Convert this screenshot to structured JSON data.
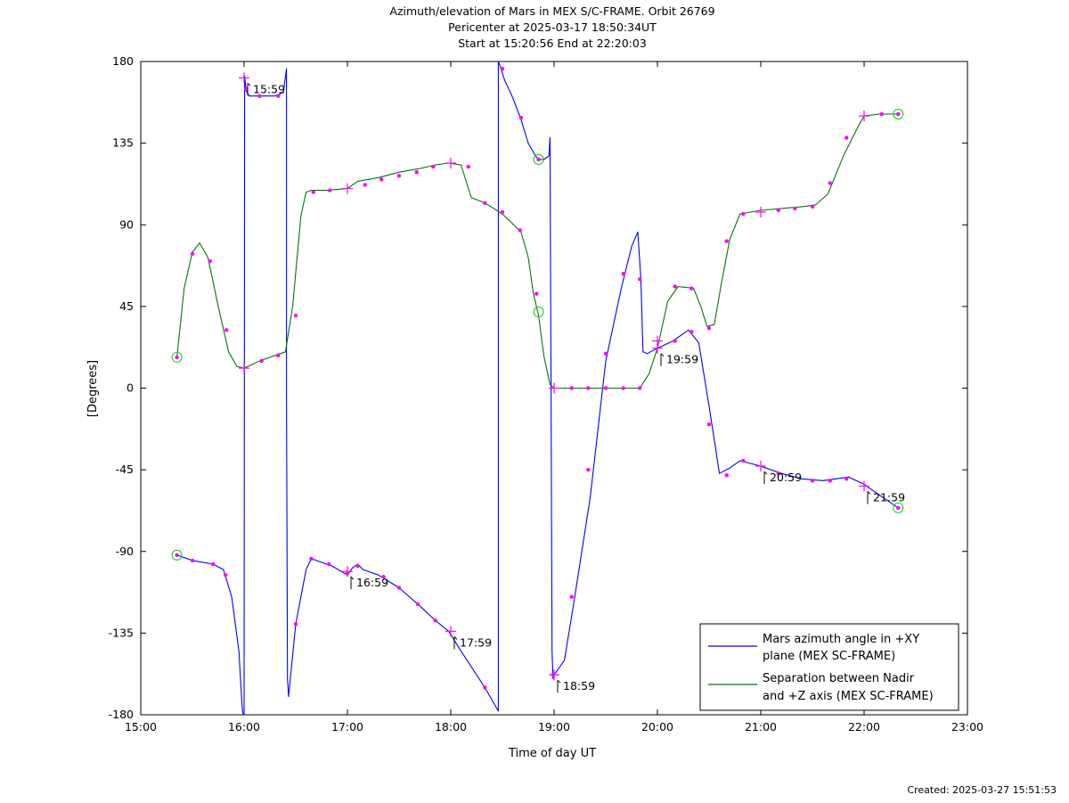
{
  "header": {
    "title": "Azimuth/elevation of Mars in MEX S/C-FRAME.  Orbit 26769",
    "pericenter": "Pericenter at 2025-03-17 18:50:34UT",
    "span": "Start at 15:20:56 End at 22:20:03"
  },
  "footer": {
    "created": "Created: 2025-03-27 15:51:53"
  },
  "colors": {
    "azimuth": "#0000ff",
    "separation": "#007700",
    "marker": "#ff00ff",
    "endpoint": "#22cc22"
  },
  "chart_data": {
    "type": "line",
    "xlabel": "Time of day UT",
    "ylabel": "[Degrees]",
    "xlim": [
      15.0,
      23.0
    ],
    "ylim": [
      -180,
      180
    ],
    "x_ticks": [
      15,
      16,
      17,
      18,
      19,
      20,
      21,
      22,
      23
    ],
    "x_tick_labels": [
      "15:00",
      "16:00",
      "17:00",
      "18:00",
      "19:00",
      "20:00",
      "21:00",
      "22:00",
      "23:00"
    ],
    "y_ticks": [
      180,
      135,
      90,
      45,
      0,
      -45,
      -90,
      -135,
      -180
    ],
    "y_tick_labels": [
      "180",
      "135",
      "90",
      "45",
      "0",
      "-45",
      "-90",
      "-135",
      "-180"
    ],
    "legend_position": "bottom-right",
    "series": [
      {
        "name": "Mars azimuth angle in +XY plane (MEX SC-FRAME)",
        "legend_lines": [
          "Mars azimuth angle in +XY",
          "plane (MEX SC-FRAME)"
        ],
        "color": "#0000ff",
        "x": [
          15.35,
          15.5,
          15.7,
          15.8,
          15.88,
          15.95,
          15.98,
          15.99,
          16.0,
          16.005,
          16.02,
          16.05,
          16.15,
          16.3,
          16.38,
          16.41,
          16.41,
          16.42,
          16.43,
          16.5,
          16.6,
          16.65,
          16.85,
          17.0,
          17.05,
          17.1,
          17.15,
          17.3,
          17.5,
          17.7,
          17.85,
          17.98,
          18.1,
          18.33,
          18.46,
          18.46,
          18.48,
          18.52,
          18.6,
          18.68,
          18.75,
          18.82,
          18.85,
          18.9,
          18.95,
          18.96,
          18.97,
          18.98,
          18.99,
          19.0,
          19.1,
          19.2,
          19.35,
          19.5,
          19.65,
          19.75,
          19.81,
          19.84,
          19.86,
          19.9,
          20.0,
          20.15,
          20.3,
          20.4,
          20.5,
          20.6,
          20.7,
          20.8,
          21.0,
          21.2,
          21.4,
          21.6,
          21.85,
          22.0,
          22.15,
          22.33
        ],
        "y": [
          -92,
          -95,
          -97,
          -100,
          -115,
          -145,
          -175,
          -180,
          -180,
          172,
          164,
          161,
          161,
          161,
          163,
          176,
          0,
          -160,
          -170,
          -130,
          -100,
          -94,
          -98,
          -103,
          -99,
          -97,
          -100,
          -103,
          -110,
          -120,
          -128,
          -134,
          -145,
          -165,
          -178,
          180,
          177,
          170,
          160,
          148,
          135,
          128,
          126,
          126,
          128,
          138,
          10,
          -145,
          -160,
          -158,
          -150,
          -115,
          -60,
          15,
          55,
          78,
          86,
          60,
          20,
          19,
          22,
          26,
          32,
          25,
          -10,
          -47,
          -44,
          -40,
          -43,
          -47,
          -50,
          -51,
          -49,
          -53,
          -59,
          -66
        ]
      },
      {
        "name": "Separation between Nadir and +Z axis (MEX SC-FRAME)",
        "legend_lines": [
          "Separation between Nadir",
          "and +Z axis (MEX SC-FRAME)"
        ],
        "color": "#007700",
        "x": [
          15.35,
          15.42,
          15.5,
          15.57,
          15.65,
          15.75,
          15.85,
          15.93,
          16.0,
          16.15,
          16.3,
          16.4,
          16.47,
          16.55,
          16.6,
          16.65,
          16.8,
          17.0,
          17.1,
          17.3,
          17.5,
          17.7,
          17.85,
          17.98,
          18.1,
          18.17,
          18.2,
          18.33,
          18.5,
          18.68,
          18.75,
          18.8,
          18.85,
          18.9,
          18.96,
          19.0,
          19.2,
          19.5,
          19.7,
          19.83,
          19.92,
          20.0,
          20.1,
          20.2,
          20.35,
          20.42,
          20.48,
          20.55,
          20.62,
          20.7,
          20.8,
          21.0,
          21.2,
          21.4,
          21.53,
          21.65,
          21.8,
          21.95,
          22.0,
          22.15,
          22.33
        ],
        "y": [
          17,
          55,
          75,
          80,
          72,
          45,
          20,
          12,
          11,
          15,
          18,
          20,
          45,
          95,
          108,
          109,
          109,
          110,
          114,
          116,
          119,
          121,
          123,
          124,
          123,
          110,
          105,
          102,
          96,
          86,
          72,
          52,
          40,
          18,
          2,
          0,
          0,
          0,
          0,
          0,
          8,
          22,
          48,
          56,
          55,
          45,
          34,
          35,
          58,
          82,
          96,
          98,
          99,
          100,
          101,
          107,
          128,
          145,
          150,
          151,
          151
        ]
      }
    ],
    "markers": {
      "azimuth_points": [
        [
          15.35,
          -92
        ],
        [
          15.5,
          -95
        ],
        [
          15.7,
          -97
        ],
        [
          15.82,
          -103
        ],
        [
          16.02,
          165
        ],
        [
          16.15,
          161
        ],
        [
          16.33,
          161
        ],
        [
          16.5,
          -130
        ],
        [
          16.65,
          -94
        ],
        [
          16.82,
          -97
        ],
        [
          17.0,
          -102
        ],
        [
          17.1,
          -98
        ],
        [
          17.35,
          -104
        ],
        [
          17.5,
          -110
        ],
        [
          17.68,
          -119
        ],
        [
          17.85,
          -128
        ],
        [
          18.33,
          -165
        ],
        [
          18.5,
          176
        ],
        [
          18.68,
          149
        ],
        [
          18.85,
          126
        ],
        [
          18.99,
          -158
        ],
        [
          19.17,
          -115
        ],
        [
          19.33,
          -45
        ],
        [
          19.5,
          19
        ],
        [
          19.67,
          63
        ],
        [
          19.83,
          60
        ],
        [
          20.17,
          26
        ],
        [
          20.33,
          31
        ],
        [
          20.5,
          -20
        ],
        [
          20.67,
          -48
        ],
        [
          20.83,
          -40
        ],
        [
          21.17,
          -47
        ],
        [
          21.5,
          -51
        ],
        [
          21.67,
          -51
        ],
        [
          21.83,
          -50
        ],
        [
          22.33,
          -66
        ]
      ],
      "separation_points": [
        [
          15.35,
          17
        ],
        [
          15.5,
          74
        ],
        [
          15.67,
          70
        ],
        [
          15.83,
          32
        ],
        [
          16.17,
          15
        ],
        [
          16.33,
          18
        ],
        [
          16.5,
          40
        ],
        [
          16.67,
          108
        ],
        [
          16.83,
          109
        ],
        [
          17.17,
          112
        ],
        [
          17.33,
          115
        ],
        [
          17.5,
          117
        ],
        [
          17.67,
          119
        ],
        [
          17.83,
          122
        ],
        [
          18.17,
          122
        ],
        [
          18.33,
          102
        ],
        [
          18.5,
          97
        ],
        [
          18.67,
          87
        ],
        [
          18.83,
          52
        ],
        [
          19.17,
          0
        ],
        [
          19.33,
          0
        ],
        [
          19.5,
          0
        ],
        [
          19.67,
          0
        ],
        [
          19.83,
          0
        ],
        [
          20.17,
          56
        ],
        [
          20.33,
          55
        ],
        [
          20.5,
          33
        ],
        [
          20.67,
          81
        ],
        [
          20.83,
          96
        ],
        [
          21.17,
          98
        ],
        [
          21.33,
          99
        ],
        [
          21.5,
          100
        ],
        [
          21.67,
          113
        ],
        [
          21.83,
          138
        ],
        [
          22.17,
          151
        ],
        [
          22.33,
          151
        ]
      ],
      "hour_crosses": [
        [
          16.0,
          171
        ],
        [
          16.0,
          11
        ],
        [
          17.0,
          -101
        ],
        [
          17.0,
          110
        ],
        [
          18.0,
          -134
        ],
        [
          18.0,
          124
        ],
        [
          19.0,
          -158
        ],
        [
          19.0,
          0
        ],
        [
          20.0,
          26
        ],
        [
          20.0,
          22
        ],
        [
          21.0,
          -43
        ],
        [
          21.0,
          97
        ],
        [
          22.0,
          -54
        ],
        [
          22.0,
          150
        ]
      ],
      "endpoint_circles": [
        [
          15.35,
          -92
        ],
        [
          15.35,
          17
        ],
        [
          18.85,
          126
        ],
        [
          18.85,
          42
        ],
        [
          22.33,
          151
        ],
        [
          22.33,
          -66
        ]
      ]
    },
    "annotations": [
      {
        "text": "15:59",
        "x": 16.0,
        "y": 171
      },
      {
        "text": "16:59",
        "x": 17.0,
        "y": -101
      },
      {
        "text": "17:59",
        "x": 18.0,
        "y": -134
      },
      {
        "text": "18:59",
        "x": 19.0,
        "y": -158
      },
      {
        "text": "19:59",
        "x": 20.0,
        "y": 22
      },
      {
        "text": "20:59",
        "x": 21.0,
        "y": -43
      },
      {
        "text": "21:59",
        "x": 22.0,
        "y": -54
      }
    ]
  }
}
